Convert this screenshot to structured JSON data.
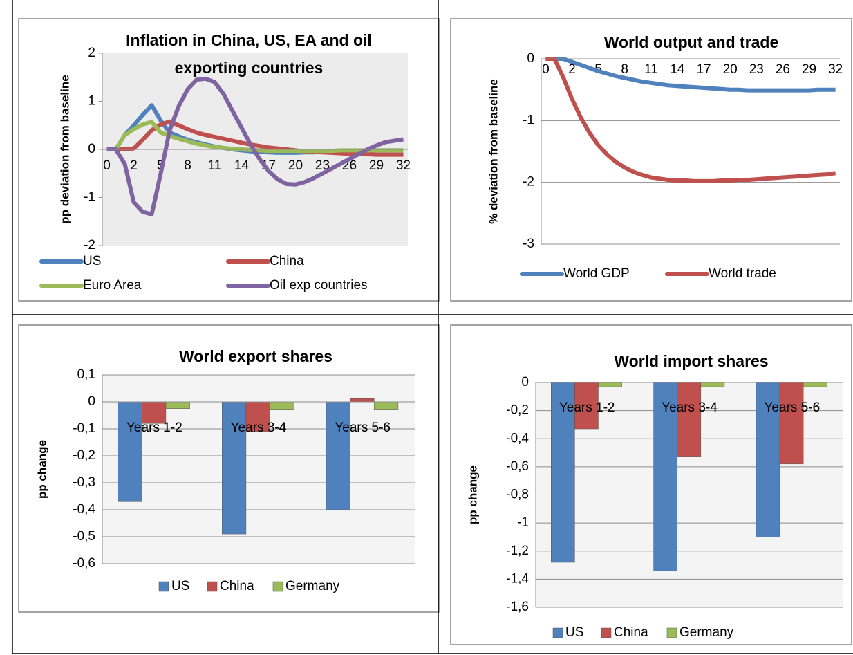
{
  "chart_data": [
    {
      "type": "line",
      "title": [
        "Inflation in China, US, EA and oil",
        "exporting countries"
      ],
      "y_label": "pp deviation from baseline",
      "categories": [
        0,
        null,
        null,
        2,
        null,
        null,
        5,
        null,
        null,
        8,
        null,
        null,
        11,
        null,
        null,
        14,
        null,
        null,
        17,
        null,
        null,
        20,
        null,
        null,
        23,
        null,
        null,
        26,
        null,
        null,
        29,
        null,
        null,
        32
      ],
      "ylim": [
        -2,
        2
      ],
      "yticks": [
        -2,
        -1,
        0,
        1,
        2
      ],
      "grid": false,
      "legend": "bottom",
      "series": [
        {
          "name": "US",
          "color": "#4f81bd",
          "values": [
            0,
            0,
            0.3,
            0.5,
            0.72,
            0.92,
            0.6,
            0.35,
            0.27,
            0.2,
            0.15,
            0.1,
            0.06,
            0.03,
            0,
            -0.02,
            -0.04,
            -0.05,
            -0.06,
            -0.07,
            -0.07,
            -0.07,
            -0.06,
            -0.06,
            -0.05,
            -0.05,
            -0.04,
            -0.04,
            -0.03,
            -0.03,
            -0.02,
            -0.02,
            -0.02,
            -0.02
          ]
        },
        {
          "name": "China",
          "color": "#c0504d",
          "values": [
            0,
            0,
            0,
            0.02,
            0.2,
            0.4,
            0.52,
            0.58,
            0.5,
            0.42,
            0.35,
            0.3,
            0.26,
            0.22,
            0.18,
            0.14,
            0.1,
            0.07,
            0.04,
            0.02,
            0,
            -0.02,
            -0.04,
            -0.05,
            -0.06,
            -0.07,
            -0.08,
            -0.09,
            -0.1,
            -0.1,
            -0.11,
            -0.11,
            -0.11,
            -0.11
          ]
        },
        {
          "name": "Euro Area",
          "color": "#9bbb59",
          "values": [
            0,
            0,
            0.3,
            0.42,
            0.52,
            0.57,
            0.35,
            0.28,
            0.22,
            0.17,
            0.12,
            0.08,
            0.05,
            0.03,
            0.01,
            0,
            -0.01,
            -0.02,
            -0.03,
            -0.03,
            -0.03,
            -0.03,
            -0.03,
            -0.03,
            -0.03,
            -0.03,
            -0.02,
            -0.02,
            -0.02,
            -0.02,
            -0.02,
            -0.02,
            -0.02,
            -0.02
          ]
        },
        {
          "name": "Oil exp  countries",
          "color": "#8064a2",
          "values": [
            0,
            0,
            -0.3,
            -1.1,
            -1.3,
            -1.35,
            -0.5,
            0.4,
            0.9,
            1.25,
            1.45,
            1.47,
            1.4,
            1.15,
            0.8,
            0.45,
            0.1,
            -0.2,
            -0.45,
            -0.62,
            -0.72,
            -0.73,
            -0.68,
            -0.6,
            -0.5,
            -0.4,
            -0.3,
            -0.2,
            -0.1,
            0,
            0.08,
            0.15,
            0.18,
            0.21
          ]
        }
      ]
    },
    {
      "type": "line",
      "title": "World output and trade",
      "y_label": "% deviation from baseline",
      "categories": [
        0,
        null,
        null,
        2,
        null,
        null,
        5,
        null,
        null,
        8,
        null,
        null,
        11,
        null,
        null,
        14,
        null,
        null,
        17,
        null,
        null,
        20,
        null,
        null,
        23,
        null,
        null,
        26,
        null,
        null,
        29,
        null,
        null,
        32
      ],
      "ylim": [
        -3,
        0
      ],
      "yticks": [
        -3,
        -2,
        -1,
        0
      ],
      "grid": true,
      "legend": "bottom",
      "series": [
        {
          "name": "World GDP",
          "color": "#4f81bd",
          "values": [
            0,
            0,
            0,
            -0.05,
            -0.1,
            -0.15,
            -0.2,
            -0.24,
            -0.28,
            -0.31,
            -0.34,
            -0.37,
            -0.39,
            -0.41,
            -0.43,
            -0.44,
            -0.45,
            -0.46,
            -0.47,
            -0.48,
            -0.49,
            -0.5,
            -0.5,
            -0.51,
            -0.51,
            -0.51,
            -0.51,
            -0.51,
            -0.51,
            -0.51,
            -0.51,
            -0.5,
            -0.5,
            -0.5
          ]
        },
        {
          "name": "World trade",
          "color": "#c0504d",
          "values": [
            0,
            0,
            -0.3,
            -0.65,
            -0.95,
            -1.2,
            -1.4,
            -1.55,
            -1.67,
            -1.76,
            -1.83,
            -1.88,
            -1.92,
            -1.94,
            -1.96,
            -1.97,
            -1.97,
            -1.98,
            -1.98,
            -1.98,
            -1.97,
            -1.97,
            -1.96,
            -1.96,
            -1.95,
            -1.94,
            -1.93,
            -1.92,
            -1.91,
            -1.9,
            -1.89,
            -1.88,
            -1.87,
            -1.85
          ]
        }
      ]
    },
    {
      "type": "bar",
      "title": "World  export shares",
      "y_label": "pp change",
      "categories": [
        "Years 1-2",
        "Years 3-4",
        "Years 5-6"
      ],
      "ylim": [
        -0.6,
        0.1
      ],
      "yticks": [
        {
          "value": -0.6,
          "label": "-0,6"
        },
        {
          "value": -0.5,
          "label": "-0,5"
        },
        {
          "value": -0.4,
          "label": "-0,4"
        },
        {
          "value": -0.3,
          "label": "-0,3"
        },
        {
          "value": -0.2,
          "label": "-0,2"
        },
        {
          "value": -0.1,
          "label": "-0,1"
        },
        0,
        {
          "value": 0.1,
          "label": "0,1"
        }
      ],
      "grid": true,
      "legend": "bottom",
      "series": [
        {
          "name": "US",
          "color": "#4f81bd",
          "values": [
            -0.37,
            -0.49,
            -0.4
          ]
        },
        {
          "name": "China",
          "color": "#c0504d",
          "values": [
            -0.08,
            -0.11,
            0.012
          ]
        },
        {
          "name": "Germany",
          "color": "#9bbb59",
          "values": [
            -0.025,
            -0.03,
            -0.03
          ]
        }
      ]
    },
    {
      "type": "bar",
      "title": "World  import shares",
      "y_label": "pp change",
      "categories": [
        "Years 1-2",
        "Years 3-4",
        "Years 5-6"
      ],
      "ylim": [
        -1.6,
        0
      ],
      "yticks": [
        {
          "value": -1.6,
          "label": "-1,6"
        },
        {
          "value": -1.4,
          "label": "-1,4"
        },
        {
          "value": -1.2,
          "label": "-1,2"
        },
        {
          "value": -1,
          "label": "-1"
        },
        {
          "value": -0.8,
          "label": "-0,8"
        },
        {
          "value": -0.6,
          "label": "-0,6"
        },
        {
          "value": -0.4,
          "label": "-0,4"
        },
        {
          "value": -0.2,
          "label": "-0,2"
        },
        0
      ],
      "grid": true,
      "legend": "bottom",
      "series": [
        {
          "name": "US",
          "color": "#4f81bd",
          "values": [
            -1.28,
            -1.34,
            -1.1
          ]
        },
        {
          "name": "China",
          "color": "#c0504d",
          "values": [
            -0.33,
            -0.53,
            -0.58
          ]
        },
        {
          "name": "Germany",
          "color": "#9bbb59",
          "values": [
            -0.03,
            -0.03,
            -0.03
          ]
        }
      ]
    }
  ]
}
